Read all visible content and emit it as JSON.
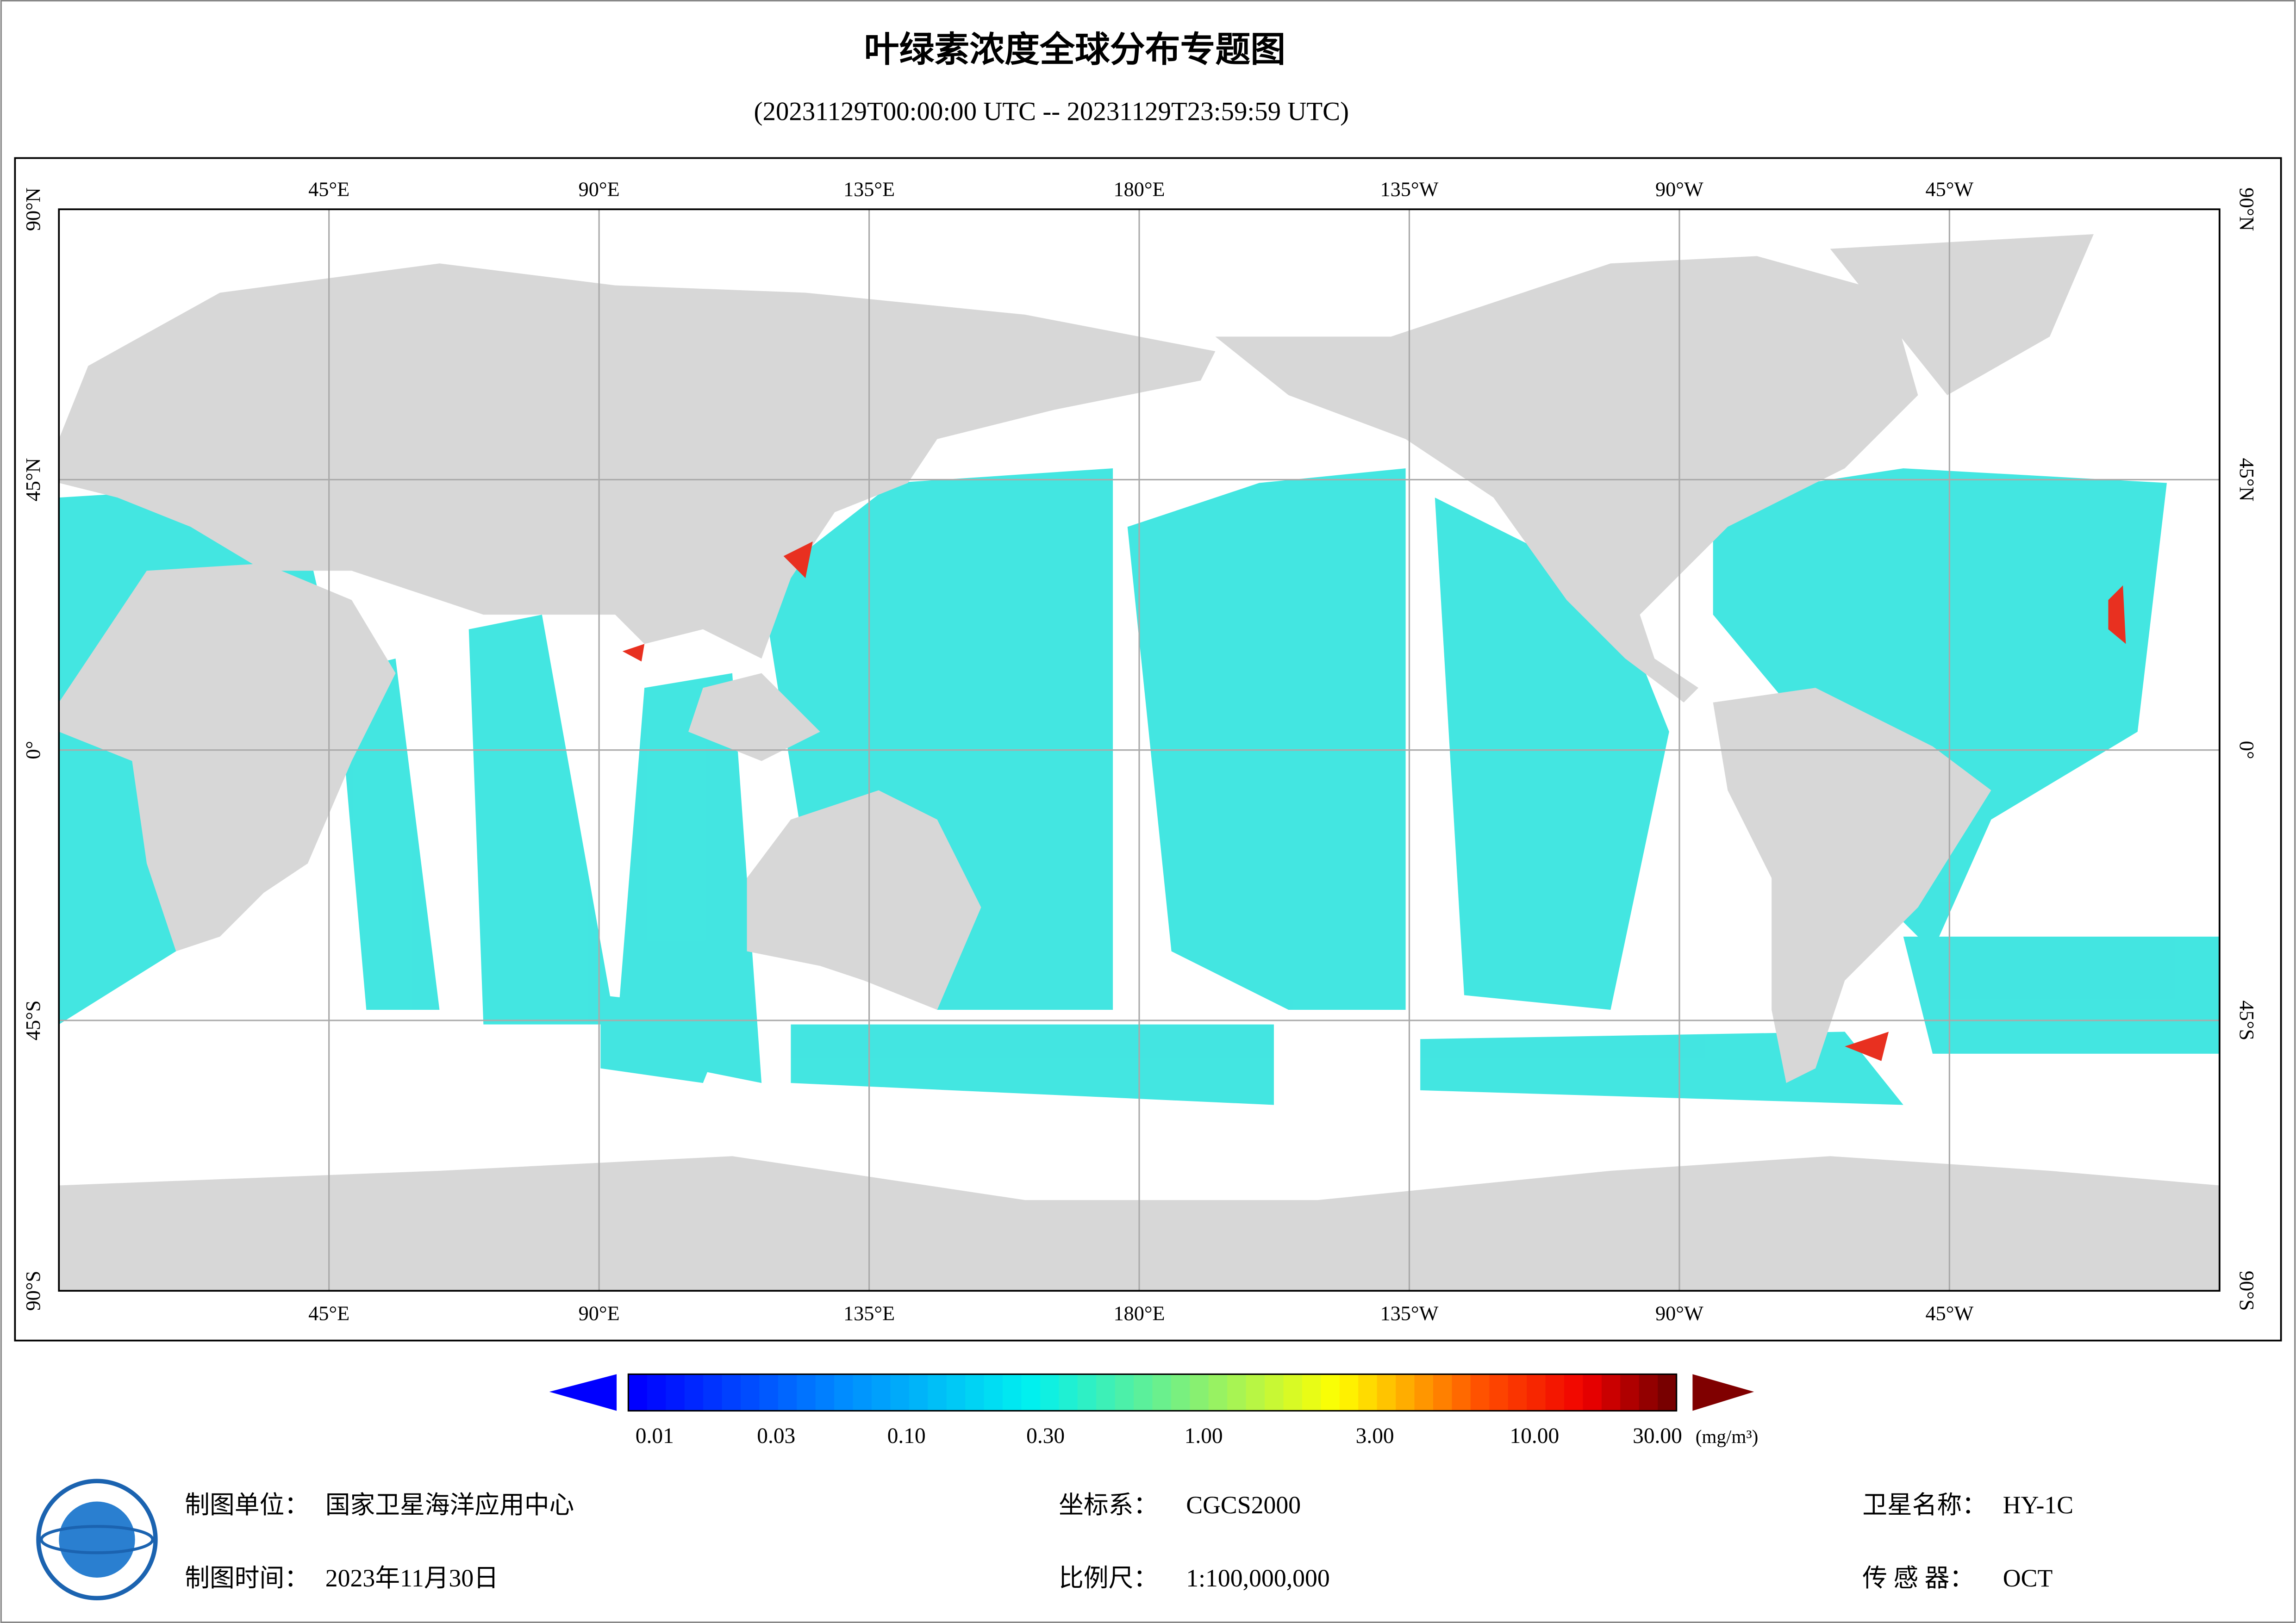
{
  "header": {
    "title": "叶绿素浓度全球分布专题图",
    "subtitle": "(20231129T00:00:00 UTC -- 20231129T23:59:59 UTC)"
  },
  "map": {
    "longitude_labels": [
      "45°E",
      "90°E",
      "135°E",
      "180°E",
      "135°W",
      "90°W",
      "45°W"
    ],
    "latitude_labels": [
      "90°N",
      "45°N",
      "0°",
      "45°S",
      "90°S"
    ]
  },
  "colorbar": {
    "tick_labels": [
      "0.01",
      "0.03",
      "0.10",
      "0.30",
      "1.00",
      "3.00",
      "10.00",
      "30.00"
    ],
    "unit": "(mg/m³)"
  },
  "footer": {
    "producer_label": "制图单位：",
    "producer": "国家卫星海洋应用中心",
    "date_label": "制图时间：",
    "date": "2023年11月30日",
    "crs_label": "坐标系：",
    "crs": "CGCS2000",
    "scale_label": "比例尺：",
    "scale": "1:100,000,000",
    "satellite_label": "卫星名称：",
    "satellite": "HY-1C",
    "sensor_label": "传 感 器：",
    "sensor": "OCT"
  }
}
